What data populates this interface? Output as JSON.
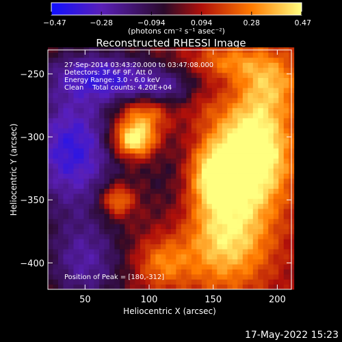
{
  "chart_data": {
    "type": "heatmap",
    "title": "Reconstructed RHESSI Image",
    "xlabel": "Heliocentric X (arcsec)",
    "ylabel": "Heliocentric Y (arcsec)",
    "xlim": [
      21,
      211
    ],
    "ylim": [
      -421,
      -231
    ],
    "xticks": [
      50,
      100,
      150,
      200
    ],
    "yticks": [
      -250,
      -300,
      -350,
      -400
    ],
    "colorbar": {
      "min": -0.47,
      "max": 0.47,
      "ticks": [
        "-0.47",
        "-0.28",
        "−0.094",
        "0.094",
        "0.28",
        "0.47"
      ],
      "unit_label": "(photons cm⁻² s⁻¹ asec⁻²)",
      "colors": [
        "#1010ff",
        "#5a1fb8",
        "#2a0a2a",
        "#b0100a",
        "#ff7a00",
        "#ffff80"
      ]
    },
    "annotations": [
      "27-Sep-2014 03:43:20.000 to 03:47:08.000",
      "Detectors: 3F 6F 9F, Att 0",
      "Energy Range: 3.0 - 6.0 keV",
      "Clean    Total counts: 4.20E+04"
    ],
    "peak_label": "Position of Peak = [180,-312]",
    "peak": [
      180,
      -312
    ],
    "sources": [
      {
        "x": 180,
        "y": -312,
        "sx": 22,
        "sy": 30,
        "amp": 0.55
      },
      {
        "x": 88,
        "y": -302,
        "sx": 12,
        "sy": 10,
        "amp": 0.52
      },
      {
        "x": 96,
        "y": -280,
        "sx": 15,
        "sy": 10,
        "amp": 0.3
      },
      {
        "x": 75,
        "y": -350,
        "sx": 9,
        "sy": 9,
        "amp": 0.32
      },
      {
        "x": 160,
        "y": -380,
        "sx": 25,
        "sy": 30,
        "amp": 0.38
      },
      {
        "x": 148,
        "y": -330,
        "sx": 14,
        "sy": 18,
        "amp": 0.3
      },
      {
        "x": 110,
        "y": -400,
        "sx": 15,
        "sy": 14,
        "amp": 0.22
      },
      {
        "x": 195,
        "y": -255,
        "sx": 18,
        "sy": 18,
        "amp": 0.26
      },
      {
        "x": 160,
        "y": -240,
        "sx": 20,
        "sy": 10,
        "amp": 0.2
      },
      {
        "x": 140,
        "y": -270,
        "sx": 12,
        "sy": 12,
        "amp": 0.12
      },
      {
        "x": 40,
        "y": -310,
        "sx": 26,
        "sy": 35,
        "amp": -0.42
      },
      {
        "x": 60,
        "y": -250,
        "sx": 30,
        "sy": 14,
        "amp": -0.3
      },
      {
        "x": 110,
        "y": -262,
        "sx": 28,
        "sy": 12,
        "amp": -0.26
      },
      {
        "x": 50,
        "y": -400,
        "sx": 22,
        "sy": 25,
        "amp": -0.28
      },
      {
        "x": 120,
        "y": -335,
        "sx": 18,
        "sy": 30,
        "amp": -0.12
      }
    ],
    "offset": 0.05
  },
  "footer": {
    "timestamp": "17-May-2022 15:23"
  }
}
